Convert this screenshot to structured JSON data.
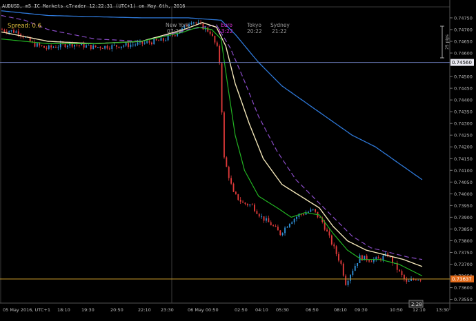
{
  "window": {
    "title": "AUDUSD, m5 IC Markets cTrader 12:22:31 (UTC+1) on May 6th, 2016"
  },
  "overlay": {
    "spread_label": "Spread: 0.6",
    "sessions": [
      {
        "name": "New York",
        "time": "07:22",
        "color": "#9a9a9a"
      },
      {
        "name": "Euro",
        "time": "13:22",
        "color": "#d62fd6"
      },
      {
        "name": "Tokyo",
        "time": "20:22",
        "color": "#9a9a9a"
      },
      {
        "name": "Sydney",
        "time": "21:22",
        "color": "#9a9a9a"
      }
    ],
    "pips_label": "25 pips",
    "countdown": "2:28"
  },
  "price_axis": {
    "ticks": [
      "0.74750",
      "0.74700",
      "0.74650",
      "0.74600",
      "0.74500",
      "0.74450",
      "0.74400",
      "0.74350",
      "0.74300",
      "0.74250",
      "0.74200",
      "0.74150",
      "0.74100",
      "0.74050",
      "0.74000",
      "0.73950",
      "0.73900",
      "0.73850",
      "0.73800",
      "0.73750",
      "0.73700",
      "0.73650",
      "0.73600",
      "0.73550"
    ],
    "hline_price": "0.74560",
    "current_price": "0.73637"
  },
  "time_axis": {
    "ticks": [
      "05 May 2016, UTC+1",
      "18:10",
      "19:30",
      "20:50",
      "22:10",
      "23:30",
      "06 May 00:50",
      "02:50",
      "04:10",
      "05:30",
      "06:50",
      "08:10",
      "09:30",
      "10:50",
      "12:10",
      "13:30"
    ]
  },
  "colors": {
    "bull": "#2f8fd6",
    "bear": "#e03a3a",
    "ma_fast": "#22b422",
    "ma_mid": "#f2e6b8",
    "ma_slow": "#2e78d8",
    "ma_dashed": "#8a4cc8",
    "hline": "#6a7ab8",
    "price_line": "#c89a2a",
    "price_badge": "#e06a1a",
    "hline_badge": "#e8e8f0"
  },
  "chart_data": {
    "type": "candlestick",
    "symbol": "AUDUSD",
    "timeframe": "m5",
    "ylim": [
      0.7354,
      0.74785
    ],
    "series_anchor_points": {
      "close": [
        [
          0,
          0.747
        ],
        [
          8,
          0.7469
        ],
        [
          14,
          0.7464
        ],
        [
          20,
          0.7462
        ],
        [
          30,
          0.7464
        ],
        [
          40,
          0.74625
        ],
        [
          50,
          0.7463
        ],
        [
          60,
          0.7464
        ],
        [
          70,
          0.74655
        ],
        [
          78,
          0.747
        ],
        [
          82,
          0.7474
        ],
        [
          87,
          0.7471
        ],
        [
          90,
          0.7469
        ],
        [
          93,
          0.7462
        ],
        [
          94,
          0.7456
        ],
        [
          96,
          0.7415
        ],
        [
          100,
          0.74
        ],
        [
          104,
          0.7396
        ],
        [
          108,
          0.7395
        ],
        [
          112,
          0.739
        ],
        [
          116,
          0.7387
        ],
        [
          120,
          0.7383
        ],
        [
          124,
          0.7388
        ],
        [
          128,
          0.7391
        ],
        [
          134,
          0.7393
        ],
        [
          138,
          0.7388
        ],
        [
          142,
          0.7379
        ],
        [
          146,
          0.737
        ],
        [
          148,
          0.7362
        ],
        [
          150,
          0.7366
        ],
        [
          154,
          0.7373
        ],
        [
          158,
          0.7372
        ],
        [
          162,
          0.7372
        ],
        [
          166,
          0.7374
        ],
        [
          170,
          0.7368
        ],
        [
          174,
          0.7362
        ],
        [
          178,
          0.7364
        ],
        [
          180,
          0.73637
        ]
      ],
      "ma_fast": [
        [
          0,
          0.7466
        ],
        [
          20,
          0.7464
        ],
        [
          40,
          0.7464
        ],
        [
          60,
          0.7465
        ],
        [
          78,
          0.7469
        ],
        [
          84,
          0.7471
        ],
        [
          90,
          0.747
        ],
        [
          94,
          0.7466
        ],
        [
          97,
          0.7445
        ],
        [
          100,
          0.7425
        ],
        [
          104,
          0.741
        ],
        [
          110,
          0.7399
        ],
        [
          118,
          0.7394
        ],
        [
          124,
          0.739
        ],
        [
          130,
          0.7392
        ],
        [
          136,
          0.7391
        ],
        [
          142,
          0.7383
        ],
        [
          148,
          0.7376
        ],
        [
          154,
          0.7372
        ],
        [
          162,
          0.7372
        ],
        [
          170,
          0.737
        ],
        [
          180,
          0.7365
        ]
      ],
      "ma_mid": [
        [
          0,
          0.7469
        ],
        [
          20,
          0.7465
        ],
        [
          40,
          0.7464
        ],
        [
          60,
          0.7465
        ],
        [
          78,
          0.747
        ],
        [
          86,
          0.7473
        ],
        [
          92,
          0.7471
        ],
        [
          96,
          0.7463
        ],
        [
          100,
          0.7447
        ],
        [
          106,
          0.743
        ],
        [
          112,
          0.7415
        ],
        [
          120,
          0.7404
        ],
        [
          128,
          0.7399
        ],
        [
          136,
          0.7394
        ],
        [
          142,
          0.7386
        ],
        [
          148,
          0.738
        ],
        [
          156,
          0.7376
        ],
        [
          164,
          0.7374
        ],
        [
          172,
          0.7372
        ],
        [
          180,
          0.7369
        ]
      ],
      "ma_slow": [
        [
          0,
          0.7478
        ],
        [
          20,
          0.7476
        ],
        [
          40,
          0.74755
        ],
        [
          60,
          0.7475
        ],
        [
          80,
          0.7475
        ],
        [
          94,
          0.7474
        ],
        [
          100,
          0.7468
        ],
        [
          110,
          0.7456
        ],
        [
          120,
          0.7446
        ],
        [
          130,
          0.7439
        ],
        [
          140,
          0.7432
        ],
        [
          150,
          0.7425
        ],
        [
          160,
          0.742
        ],
        [
          170,
          0.7413
        ],
        [
          180,
          0.7406
        ]
      ],
      "ma_dashed": [
        [
          0,
          0.7476
        ],
        [
          10,
          0.7474
        ],
        [
          20,
          0.747
        ],
        [
          30,
          0.7468
        ],
        [
          40,
          0.7466
        ],
        [
          60,
          0.7465
        ],
        [
          80,
          0.747
        ],
        [
          92,
          0.7472
        ],
        [
          98,
          0.7462
        ],
        [
          104,
          0.7448
        ],
        [
          110,
          0.7433
        ],
        [
          118,
          0.7418
        ],
        [
          126,
          0.7406
        ],
        [
          134,
          0.7398
        ],
        [
          142,
          0.739
        ],
        [
          150,
          0.7382
        ],
        [
          158,
          0.7377
        ],
        [
          166,
          0.7375
        ],
        [
          174,
          0.7373
        ],
        [
          180,
          0.7372
        ]
      ]
    }
  }
}
